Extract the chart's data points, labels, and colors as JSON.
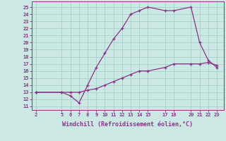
{
  "xlabel": "Windchill (Refroidissement éolien,°C)",
  "background_color": "#cce8e4",
  "grid_color": "#aad4cc",
  "line_color": "#883388",
  "x_ticks": [
    2,
    5,
    6,
    7,
    8,
    9,
    10,
    11,
    12,
    13,
    14,
    15,
    17,
    18,
    20,
    21,
    22,
    23
  ],
  "y_ticks": [
    11,
    12,
    13,
    14,
    15,
    16,
    17,
    18,
    19,
    20,
    21,
    22,
    23,
    24,
    25
  ],
  "ylim": [
    10.5,
    25.8
  ],
  "xlim": [
    1.5,
    23.8
  ],
  "line1_x": [
    2,
    5,
    6,
    7,
    8,
    9,
    10,
    11,
    12,
    13,
    14,
    15,
    17,
    18,
    20,
    21,
    22,
    23
  ],
  "line1_y": [
    13,
    13,
    12.5,
    11.5,
    14.0,
    16.5,
    18.5,
    20.5,
    22.0,
    24.0,
    24.5,
    25.0,
    24.5,
    24.5,
    25.0,
    20.0,
    17.5,
    16.5
  ],
  "line2_x": [
    2,
    5,
    6,
    7,
    8,
    9,
    10,
    11,
    12,
    13,
    14,
    15,
    17,
    18,
    20,
    21,
    22,
    23
  ],
  "line2_y": [
    13,
    13,
    13,
    13,
    13.3,
    13.5,
    14.0,
    14.5,
    15.0,
    15.5,
    16.0,
    16.0,
    16.5,
    17.0,
    17.0,
    17.0,
    17.2,
    16.8
  ]
}
